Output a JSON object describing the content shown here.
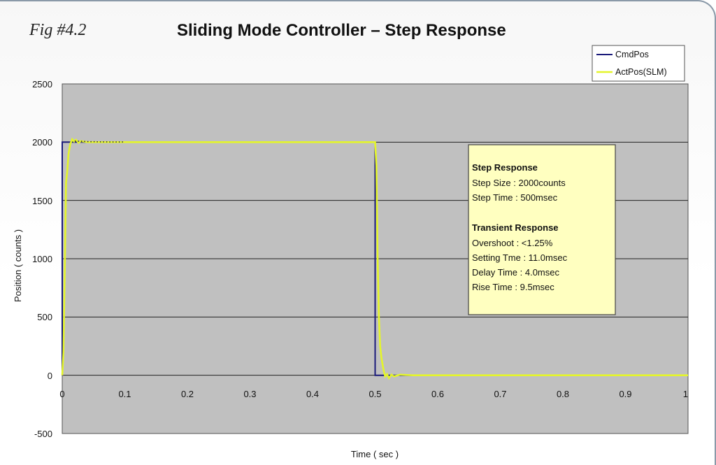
{
  "figure": {
    "fig_label": "Fig #4.2",
    "title": "Sliding Mode Controller – Step Response"
  },
  "chart_data": {
    "type": "line",
    "title": "Sliding Mode Controller – Step Response",
    "xlabel": "Time ( sec )",
    "ylabel": "Position ( counts )",
    "xlim": [
      0,
      1
    ],
    "ylim": [
      -500,
      2500
    ],
    "x_ticks": [
      "0",
      "0.1",
      "0.2",
      "0.3",
      "0.4",
      "0.5",
      "0.6",
      "0.7",
      "0.8",
      "0.9",
      "1"
    ],
    "y_ticks": [
      "2500",
      "2000",
      "1500",
      "1000",
      "500",
      "0",
      "-500"
    ],
    "grid": "horizontal",
    "legend_position": "top-right",
    "colors": {
      "plot_bg": "#c0c0c0",
      "cmd": "#1a1a7a",
      "act": "#e4f52a",
      "info_bg": "#ffffc0"
    },
    "series": [
      {
        "name": "CmdPos",
        "points": [
          [
            0,
            0
          ],
          [
            0,
            2000
          ],
          [
            0.5,
            2000
          ],
          [
            0.5,
            0
          ],
          [
            1,
            0
          ]
        ]
      },
      {
        "name": "ActPos(SLM)",
        "points": [
          [
            0,
            0
          ],
          [
            0.002,
            200
          ],
          [
            0.004,
            900
          ],
          [
            0.006,
            1650
          ],
          [
            0.008,
            1750
          ],
          [
            0.01,
            1900
          ],
          [
            0.013,
            1985
          ],
          [
            0.016,
            2025
          ],
          [
            0.019,
            2005
          ],
          [
            0.022,
            2020
          ],
          [
            0.026,
            1995
          ],
          [
            0.03,
            2010
          ],
          [
            0.04,
            2000
          ],
          [
            0.1,
            2000
          ],
          [
            0.5,
            2000
          ],
          [
            0.502,
            1800
          ],
          [
            0.504,
            1000
          ],
          [
            0.506,
            500
          ],
          [
            0.508,
            250
          ],
          [
            0.51,
            150
          ],
          [
            0.513,
            60
          ],
          [
            0.516,
            -10
          ],
          [
            0.519,
            10
          ],
          [
            0.522,
            -25
          ],
          [
            0.526,
            5
          ],
          [
            0.53,
            -10
          ],
          [
            0.54,
            5
          ],
          [
            0.56,
            0
          ],
          [
            1,
            0
          ]
        ]
      }
    ]
  },
  "info_box": {
    "heading1": "Step Response",
    "line1": "Step Size : 2000counts",
    "line2": "Step Time : 500msec",
    "heading2": "Transient Response",
    "line3": "Overshoot : <1.25%",
    "line4": "Setting Tme : 11.0msec",
    "line5": "Delay Time : 4.0msec",
    "line6": "Rise Time : 9.5msec"
  }
}
